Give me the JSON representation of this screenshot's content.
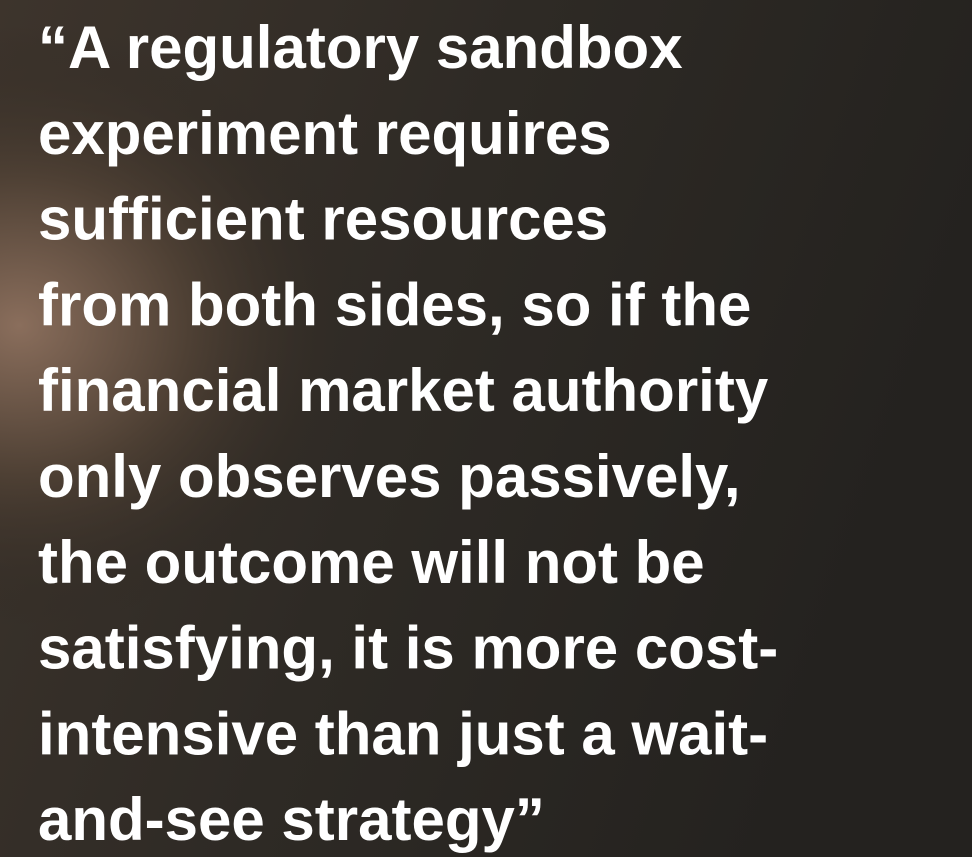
{
  "quote": {
    "lines": [
      "“A regulatory sandbox",
      "experiment requires",
      "sufficient resources",
      "from both sides, so if the",
      "financial market authority",
      "only observes passively,",
      "the outcome will not be",
      "satisfying, it is more cost-",
      "intensive than just a wait-",
      "and-see strategy”"
    ]
  }
}
